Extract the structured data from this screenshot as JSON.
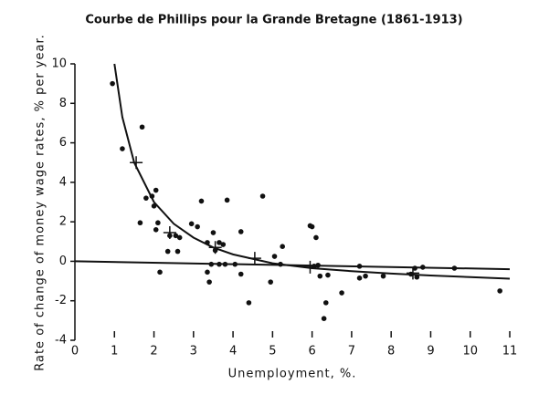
{
  "chart_data": {
    "type": "scatter",
    "title": "Courbe de Phillips pour la Grande Bretagne (1861-1913)",
    "x_label": "Unemployment,   %.",
    "y_label": "Rate of change of money wage rates, % per year.",
    "xlim": [
      0,
      11
    ],
    "ylim": [
      -4,
      10
    ],
    "xticks": [
      0,
      1,
      2,
      3,
      4,
      5,
      6,
      7,
      8,
      9,
      10,
      11
    ],
    "yticks": [
      -4,
      -2,
      0,
      2,
      4,
      6,
      8,
      10
    ],
    "series": [
      {
        "kind": "points",
        "color": "#111111",
        "x": [
          0.95,
          1.2,
          1.7,
          1.8,
          1.95,
          2.05,
          2.0,
          1.65,
          2.1,
          2.05,
          2.15,
          2.35,
          2.4,
          2.55,
          2.6,
          2.65,
          2.95,
          3.1,
          3.2,
          3.35,
          3.35,
          3.4,
          3.45,
          3.5,
          3.55,
          3.65,
          3.65,
          3.75,
          3.8,
          3.85,
          4.05,
          4.2,
          4.2,
          4.4,
          4.75,
          4.95,
          5.05,
          5.25,
          5.2,
          5.95,
          6.0,
          6.05,
          6.1,
          6.15,
          6.2,
          6.3,
          6.35,
          6.4,
          6.75,
          7.2,
          7.2,
          7.35,
          7.8,
          8.5,
          8.6,
          8.65,
          8.8,
          9.6,
          10.75
        ],
        "values": [
          9,
          5.7,
          6.8,
          3.2,
          3.3,
          3.6,
          2.8,
          1.95,
          1.95,
          1.6,
          -0.55,
          0.5,
          1.3,
          1.3,
          0.5,
          1.2,
          1.9,
          1.75,
          3.05,
          0.95,
          -0.55,
          -1.05,
          -0.15,
          1.45,
          0.55,
          0.95,
          -0.15,
          0.85,
          -0.15,
          3.1,
          -0.15,
          1.5,
          -0.65,
          -2.1,
          3.3,
          -1.05,
          0.25,
          0.75,
          -0.15,
          1.8,
          1.75,
          -0.25,
          1.2,
          -0.2,
          -0.75,
          -2.9,
          -2.1,
          -0.7,
          -1.6,
          -0.25,
          -0.85,
          -0.75,
          -0.75,
          -0.65,
          -0.35,
          -0.8,
          -0.3,
          -0.35,
          -1.5
        ]
      },
      {
        "kind": "crosses",
        "color": "#111111",
        "x": [
          1.55,
          2.4,
          3.55,
          4.55,
          5.95,
          8.55
        ],
        "values": [
          5.0,
          1.45,
          0.7,
          0.15,
          -0.3,
          -0.6
        ]
      },
      {
        "kind": "line",
        "color": "#111111",
        "x": [
          1,
          1.2,
          1.5,
          2,
          2.5,
          3,
          3.5,
          4,
          5,
          6,
          7,
          8,
          9,
          10,
          11
        ],
        "values": [
          10,
          7.3,
          5.0,
          3.0,
          1.9,
          1.2,
          0.7,
          0.35,
          -0.1,
          -0.35,
          -0.5,
          -0.62,
          -0.72,
          -0.8,
          -0.88
        ]
      },
      {
        "kind": "line",
        "color": "#111111",
        "x": [
          0,
          11
        ],
        "values": [
          0,
          -0.4
        ]
      }
    ]
  }
}
